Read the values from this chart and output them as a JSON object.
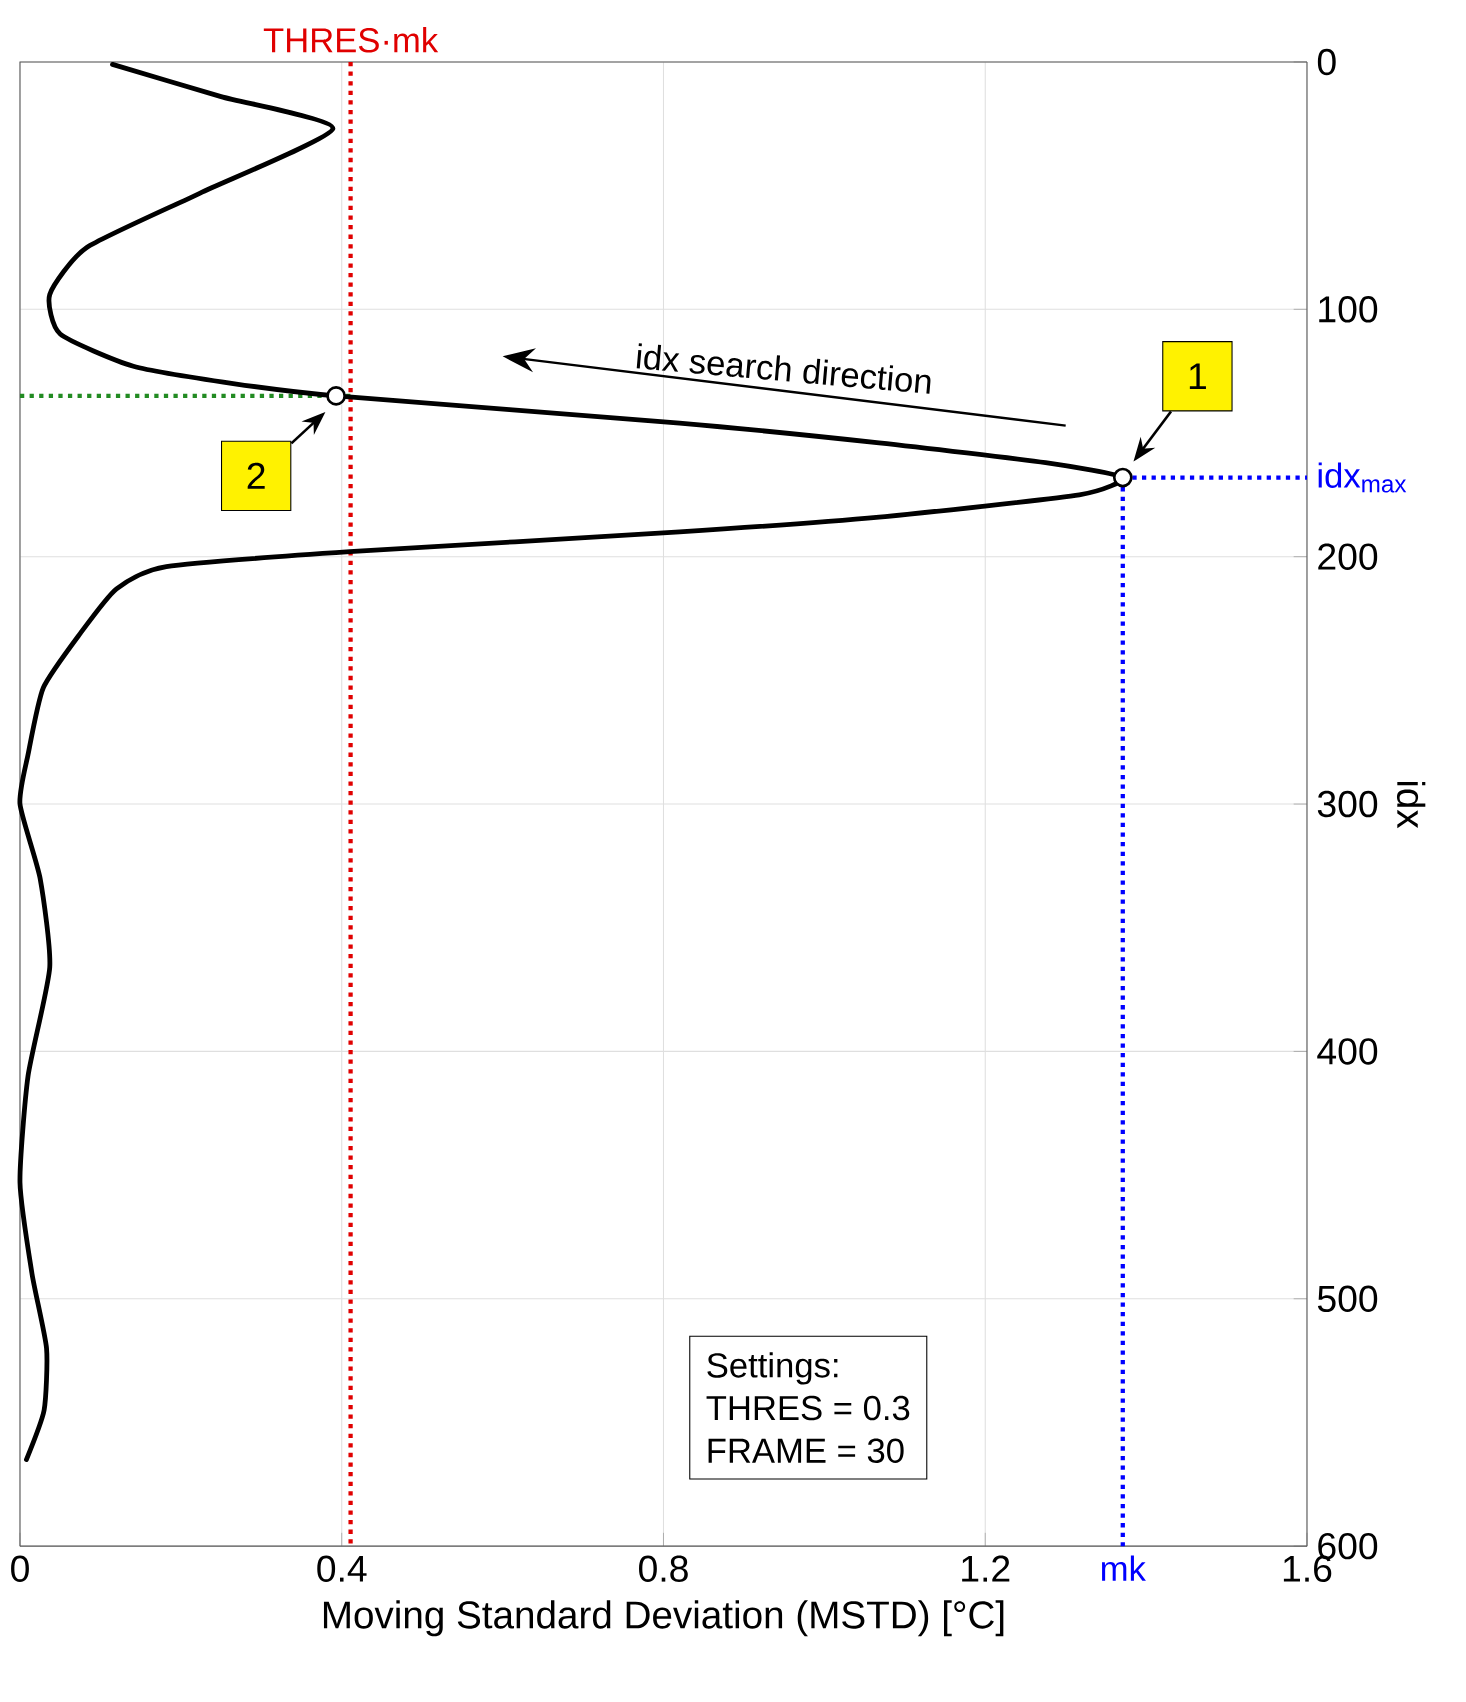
{
  "chart_data": {
    "type": "line",
    "xlabel": "Moving Standard Deviation (MSTD) [°C]",
    "ylabel": "idx",
    "xlim": [
      0,
      1.6
    ],
    "ylim": [
      600,
      0
    ],
    "xticks": [
      0,
      0.4,
      0.8,
      1.2,
      1.6
    ],
    "yticks": [
      0,
      100,
      200,
      300,
      400,
      500,
      600
    ],
    "grid": true,
    "series": [
      {
        "color": "#000000",
        "x": [
          0.115,
          0.25,
          0.389,
          0.224,
          0.083,
          0.037,
          0.05,
          0.141,
          0.265,
          0.393,
          0.82,
          1.068,
          1.275,
          1.371,
          1.317,
          1.068,
          0.82,
          0.41,
          0.182,
          0.12,
          0.075,
          0.029,
          0.01,
          0,
          0.025,
          0.037,
          0.01,
          0,
          0.015,
          0.033,
          0.03,
          0.008
        ],
        "values": [
          1,
          14,
          27,
          53,
          75,
          94,
          110,
          123,
          130,
          135,
          146,
          154,
          162,
          168,
          175,
          184,
          190,
          198,
          204,
          213,
          231,
          253,
          280,
          300,
          330,
          366,
          410,
          453,
          490,
          520,
          545,
          565
        ]
      },
      {
        "type": "scatter",
        "color": "#000000",
        "marker": "circle",
        "x": [
          1.371,
          0.393
        ],
        "values": [
          168,
          135
        ]
      }
    ],
    "ref_lines": [
      {
        "axis": "x",
        "value": 0.411,
        "label": "THRES·mk",
        "color": "#e00000",
        "line_style": "dotted"
      },
      {
        "axis": "x",
        "value": 1.371,
        "label": "mk",
        "color": "#0000ff",
        "line_style": "dotted"
      },
      {
        "axis": "y",
        "value": 168,
        "label": "idx$_{max}$",
        "color": "#0000ff",
        "line_style": "dotted"
      },
      {
        "axis": "y",
        "value": 135,
        "color": "#228b22",
        "line_style": "dotted"
      }
    ],
    "annotations": [
      {
        "text": "1",
        "x": 1.371,
        "y": 168
      },
      {
        "text": "2",
        "x": 0.393,
        "y": 135
      },
      "idx search direction",
      "Settings:",
      "THRES = 0.3",
      "FRAME = 30"
    ]
  }
}
